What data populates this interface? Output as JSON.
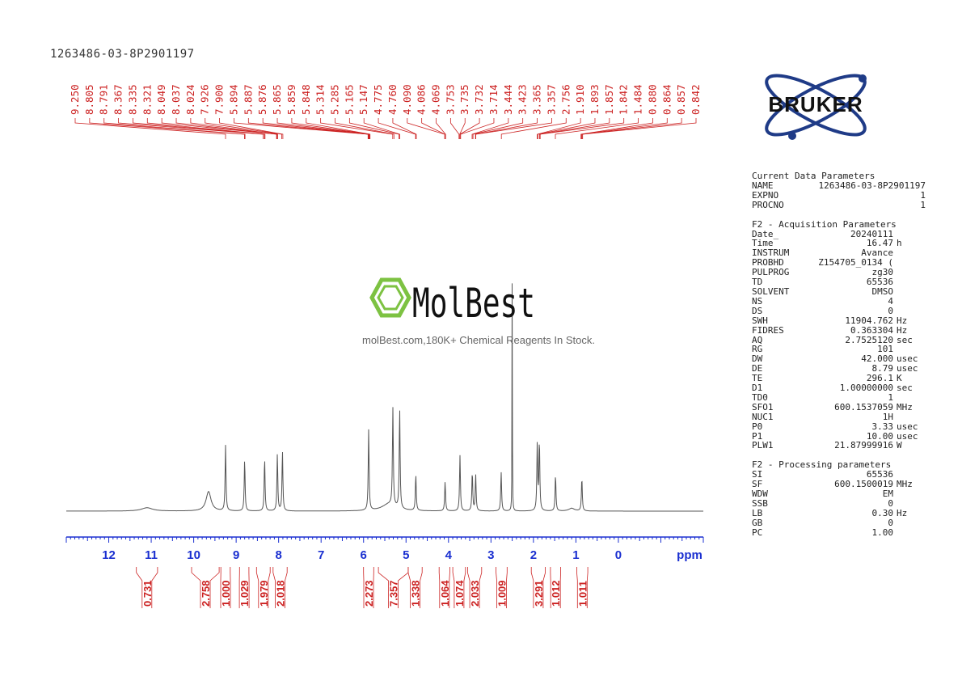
{
  "sample_id": "1263486-03-8P2901197",
  "watermark": {
    "brand": "MolBest",
    "tagline": "molBest.com,180K+ Chemical Reagents In Stock.",
    "color": "#7dc242"
  },
  "logo": {
    "text": "BRUKER",
    "color": "#1f3b87"
  },
  "chart_data": {
    "type": "line",
    "title": "",
    "xlabel": "ppm",
    "ylabel": "",
    "xlim": [
      13.0,
      -2.0
    ],
    "x_reversed": true,
    "grid": false,
    "xticks": [
      12,
      11,
      10,
      9,
      8,
      7,
      6,
      5,
      4,
      3,
      2,
      1,
      0
    ],
    "line_color": "#555555",
    "peaks": [
      {
        "ppm": 11.1,
        "height": 0.012,
        "width": 0.16
      },
      {
        "ppm": 9.65,
        "height": 0.07,
        "width": 0.07
      },
      {
        "ppm": 9.25,
        "height": 0.235,
        "width": 0.012
      },
      {
        "ppm": 8.8,
        "height": 0.185,
        "width": 0.012
      },
      {
        "ppm": 8.33,
        "height": 0.19,
        "width": 0.012
      },
      {
        "ppm": 8.03,
        "height": 0.205,
        "width": 0.012
      },
      {
        "ppm": 7.91,
        "height": 0.215,
        "width": 0.012
      },
      {
        "ppm": 5.88,
        "height": 0.29,
        "width": 0.012
      },
      {
        "ppm": 5.31,
        "height": 0.35,
        "width": 0.012
      },
      {
        "ppm": 5.15,
        "height": 0.36,
        "width": 0.012
      },
      {
        "ppm": 5.4,
        "height": 0.025,
        "width": 0.2
      },
      {
        "ppm": 4.77,
        "height": 0.13,
        "width": 0.012
      },
      {
        "ppm": 4.08,
        "height": 0.105,
        "width": 0.012
      },
      {
        "ppm": 3.73,
        "height": 0.2,
        "width": 0.012
      },
      {
        "ppm": 3.44,
        "height": 0.14,
        "width": 0.012
      },
      {
        "ppm": 3.36,
        "height": 0.13,
        "width": 0.012
      },
      {
        "ppm": 2.76,
        "height": 0.14,
        "width": 0.012
      },
      {
        "ppm": 2.5,
        "height": 1.0,
        "width": 0.004
      },
      {
        "ppm": 1.91,
        "height": 0.24,
        "width": 0.012
      },
      {
        "ppm": 1.86,
        "height": 0.25,
        "width": 0.012
      },
      {
        "ppm": 1.48,
        "height": 0.13,
        "width": 0.012
      },
      {
        "ppm": 1.1,
        "height": 0.01,
        "width": 0.08
      },
      {
        "ppm": 0.86,
        "height": 0.12,
        "width": 0.012
      }
    ],
    "peak_labels": [
      "9.250",
      "8.805",
      "8.791",
      "8.367",
      "8.335",
      "8.321",
      "8.049",
      "8.037",
      "8.024",
      "7.926",
      "7.900",
      "5.894",
      "5.887",
      "5.876",
      "5.865",
      "5.859",
      "5.848",
      "5.314",
      "5.285",
      "5.165",
      "5.147",
      "4.775",
      "4.760",
      "4.090",
      "4.086",
      "4.069",
      "3.753",
      "3.735",
      "3.732",
      "3.714",
      "3.444",
      "3.423",
      "3.365",
      "3.357",
      "2.756",
      "1.910",
      "1.893",
      "1.857",
      "1.842",
      "1.484",
      "0.880",
      "0.864",
      "0.857",
      "0.842"
    ],
    "integrals": [
      {
        "value": "0.731",
        "from": 11.35,
        "to": 10.85
      },
      {
        "value": "2.758",
        "from": 10.05,
        "to": 9.4
      },
      {
        "value": "1.000",
        "from": 9.36,
        "to": 9.14
      },
      {
        "value": "1.029",
        "from": 8.92,
        "to": 8.7
      },
      {
        "value": "1.979",
        "from": 8.52,
        "to": 8.2
      },
      {
        "value": "2.018",
        "from": 8.13,
        "to": 7.8
      },
      {
        "value": "2.273",
        "from": 6.0,
        "to": 5.76
      },
      {
        "value": "7.357",
        "from": 5.65,
        "to": 4.95
      },
      {
        "value": "1.338",
        "from": 4.95,
        "to": 4.62
      },
      {
        "value": "1.064",
        "from": 4.22,
        "to": 3.97
      },
      {
        "value": "1.074",
        "from": 3.9,
        "to": 3.6
      },
      {
        "value": "2.033",
        "from": 3.55,
        "to": 3.22
      },
      {
        "value": "1.009",
        "from": 2.88,
        "to": 2.62
      },
      {
        "value": "3.291",
        "from": 2.05,
        "to": 1.72
      },
      {
        "value": "1.012",
        "from": 1.6,
        "to": 1.36
      },
      {
        "value": "1.011",
        "from": 0.98,
        "to": 0.72
      }
    ],
    "label_color": "#cc2222",
    "axis_color": "#1a2fd0"
  },
  "parameters": {
    "current": {
      "title": "Current Data Parameters",
      "rows": [
        [
          "NAME",
          "1263486-03-8P2901197"
        ],
        [
          "EXPNO",
          "1"
        ],
        [
          "PROCNO",
          "1"
        ]
      ]
    },
    "acquisition": {
      "title": "F2 - Acquisition Parameters",
      "rows": [
        [
          "Date_",
          "20240111",
          ""
        ],
        [
          "Time",
          "16.47",
          "h"
        ],
        [
          "INSTRUM",
          "Avance",
          ""
        ],
        [
          "PROBHD",
          "Z154705_0134 (",
          ""
        ],
        [
          "PULPROG",
          "zg30",
          ""
        ],
        [
          "TD",
          "65536",
          ""
        ],
        [
          "SOLVENT",
          "DMSO",
          ""
        ],
        [
          "NS",
          "4",
          ""
        ],
        [
          "DS",
          "0",
          ""
        ],
        [
          "SWH",
          "11904.762",
          "Hz"
        ],
        [
          "FIDRES",
          "0.363304",
          "Hz"
        ],
        [
          "AQ",
          "2.7525120",
          "sec"
        ],
        [
          "RG",
          "101",
          ""
        ],
        [
          "DW",
          "42.000",
          "usec"
        ],
        [
          "DE",
          "8.79",
          "usec"
        ],
        [
          "TE",
          "296.1",
          "K"
        ],
        [
          "D1",
          "1.00000000",
          "sec"
        ],
        [
          "TD0",
          "1",
          ""
        ],
        [
          "SFO1",
          "600.1537059",
          "MHz"
        ],
        [
          "NUC1",
          "1H",
          ""
        ],
        [
          "P0",
          "3.33",
          "usec"
        ],
        [
          "P1",
          "10.00",
          "usec"
        ],
        [
          "PLW1",
          "21.87999916",
          "W"
        ]
      ]
    },
    "processing": {
      "title": "F2 - Processing parameters",
      "rows": [
        [
          "SI",
          "65536",
          ""
        ],
        [
          "SF",
          "600.1500019",
          "MHz"
        ],
        [
          "WDW",
          "EM",
          ""
        ],
        [
          "SSB",
          "0",
          ""
        ],
        [
          "LB",
          "0.30",
          "Hz"
        ],
        [
          "GB",
          "0",
          ""
        ],
        [
          "PC",
          "1.00",
          ""
        ]
      ]
    }
  }
}
